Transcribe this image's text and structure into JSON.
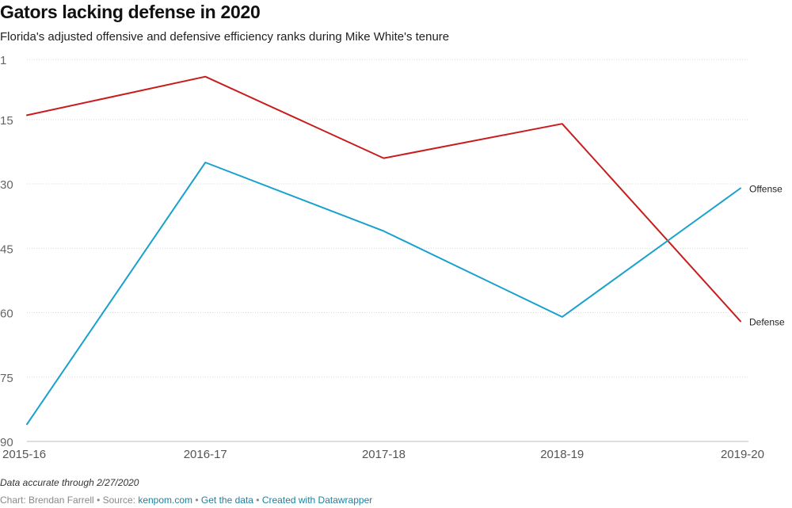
{
  "chart_data": {
    "type": "line",
    "title": "Gators lacking defense in 2020",
    "subtitle": "Florida's adjusted offensive and defensive efficiency ranks during Mike White's tenure",
    "categories": [
      "2015-16",
      "2016-17",
      "2017-18",
      "2018-19",
      "2019-20"
    ],
    "y_ticks": [
      1,
      15,
      30,
      45,
      60,
      75,
      90
    ],
    "ylim": [
      1,
      90
    ],
    "y_inverted": true,
    "grid": "horizontal-dotted",
    "series": [
      {
        "name": "Defense",
        "values": [
          14,
          5,
          24,
          16,
          62
        ],
        "color": "#c71e1d"
      },
      {
        "name": "Offense",
        "values": [
          86,
          25,
          41,
          61,
          31
        ],
        "color": "#18a1cd"
      }
    ]
  },
  "notes": "Data accurate through 2/27/2020",
  "footer": {
    "chart_label": "Chart: Brendan Farrell",
    "source_label": "Source:",
    "source_link": "kenpom.com",
    "get_data": "Get the data",
    "created_with": "Created with Datawrapper",
    "separator": "•"
  }
}
